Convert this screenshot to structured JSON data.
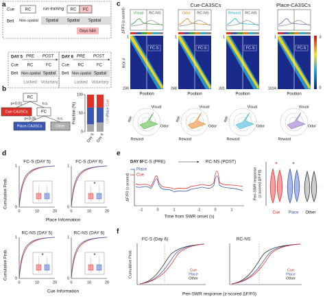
{
  "a": {
    "label": "a",
    "cue": "Cue",
    "belt": "Belt",
    "rc": "RC",
    "non_spatial": "Non-spatial",
    "run_training": "run-training",
    "rc_2": "RC",
    "fc": "FC",
    "spatial": [
      "Spatial",
      "Spatial",
      "Spatial"
    ],
    "days": "Days 5&6",
    "schedules": [
      {
        "day": "DAY 5",
        "pre": "PRE",
        "post": "POST",
        "cue": "Cue",
        "belt": "Belt",
        "rc": "RC",
        "fc": "FC",
        "non_spatial": "Non-spatial",
        "spatial": "Spatial",
        "locked": "Locked",
        "voluntary": "Voluntary"
      },
      {
        "day": "DAY 6",
        "pre": "PRE",
        "post": "POST",
        "cue": "Cue",
        "belt": "Belt",
        "rc": "RC",
        "fc": "FC",
        "non_spatial": "Non-spatial",
        "spatial": "Spatial",
        "locked": "Locked",
        "voluntary": "Voluntary"
      }
    ]
  },
  "b": {
    "label": "b",
    "rc": "RC",
    "p1": "p<0.01",
    "ns1": "n.s.",
    "cue": "Cue-CA3SCs",
    "fc": "FC",
    "p2": "p<0.05",
    "ns2": "n.s.",
    "place": "Place-CA3SCs",
    "other": "Other",
    "chart_data": {
      "type": "bar",
      "ylabel": "Fraction (%)",
      "ylim": [
        0,
        100
      ],
      "yticks": [
        0,
        50,
        100
      ],
      "categories": [
        "Day 5",
        "Day 6"
      ],
      "series": [
        {
          "name": "Other",
          "color": "#a8a8a8",
          "values": [
            20,
            25
          ]
        },
        {
          "name": "Place",
          "color": "#3a56b0",
          "values": [
            45,
            40
          ]
        },
        {
          "name": "Cue",
          "color": "#e0302a",
          "values": [
            35,
            35
          ]
        }
      ]
    }
  },
  "c": {
    "label": "c",
    "title_cue": "Cue-CA3SCs",
    "title_place": "Place-CA3SCs",
    "ylabel": "ΔF/F0 (z-scored)",
    "roi": "ROI #",
    "colorbar": [
      3,
      0
    ],
    "columns": [
      {
        "legend": [
          "Visual",
          "RC-NS"
        ],
        "condition": "FC-S",
        "roi_start": 1,
        "rois": 230,
        "xlabel": "Position",
        "polar": [
          "Visual",
          "Odor",
          "Reward",
          "RIR"
        ]
      },
      {
        "legend": [
          "Odor",
          "RC-NS"
        ],
        "condition": "FC-S",
        "roi_start": 1,
        "rois": 268,
        "xlabel": "Position",
        "polar": [
          "Visual",
          "Odor",
          "Reward",
          "RIR"
        ]
      },
      {
        "legend": [
          "Reward",
          "RC-NS"
        ],
        "condition": "FC-S",
        "roi_start": 1,
        "rois": 331,
        "xlabel": "Position",
        "polar": [
          "Visual",
          "Odor",
          "Reward",
          "RIR"
        ]
      },
      {
        "condition": "FC-S",
        "roi_start": 1,
        "rois": 1024,
        "xlabel": "Position",
        "polar": [
          "Visual",
          "Odor",
          "Reward"
        ]
      }
    ]
  },
  "d": {
    "label": "d",
    "ylabels": [
      "Cumulative Prob.",
      "Cumulative Prob."
    ],
    "xlabels": [
      "Place Information",
      "Cue Information"
    ],
    "plots": [
      {
        "title": "FC-S (DAY 5)",
        "xticks": [
          0,
          10,
          20
        ],
        "yticks": [
          0,
          1
        ]
      },
      {
        "title": "FC-S (DAY 6)",
        "xticks": [
          0,
          10,
          20
        ],
        "yticks": [
          0,
          1
        ],
        "sig": "*"
      },
      {
        "title": "RC-NS (DAY 5)",
        "xticks": [
          0,
          10,
          20
        ],
        "yticks": [
          0,
          1
        ],
        "sig": "*"
      },
      {
        "title": "RC-NS (DAY 6)",
        "xticks": [
          0,
          10,
          20
        ],
        "yticks": [
          0,
          1
        ],
        "sig": "*"
      }
    ]
  },
  "e": {
    "label": "e",
    "day": "DAY 6",
    "pre": "FC-S (PRE)",
    "post": "RC-NS (POST)",
    "legend": [
      "Place",
      "Cue"
    ],
    "ylabel": "ΔF/F0 (z-scored)",
    "xlabel": "Time from SWR onset (s)",
    "xticks": [
      -1,
      0,
      1,
      -1,
      0,
      1
    ],
    "violin": {
      "ylabel": [
        "Peri-SWR response",
        "(z-scored ΔF/F0)"
      ],
      "stars": [
        "*",
        "*"
      ],
      "groups": [
        "Cue",
        "Place",
        "Other"
      ]
    }
  },
  "f": {
    "label": "f",
    "titles": [
      "FC-S (Day 6)",
      "RC-NS"
    ],
    "legends": [
      [
        "Cue",
        "Place",
        "Other"
      ],
      [
        "Cue",
        "Place",
        "Other"
      ]
    ],
    "ylabel": "Cumulative Prob.",
    "xlabel": "Peri-SWR response (z-scored ΔF/F0)"
  }
}
